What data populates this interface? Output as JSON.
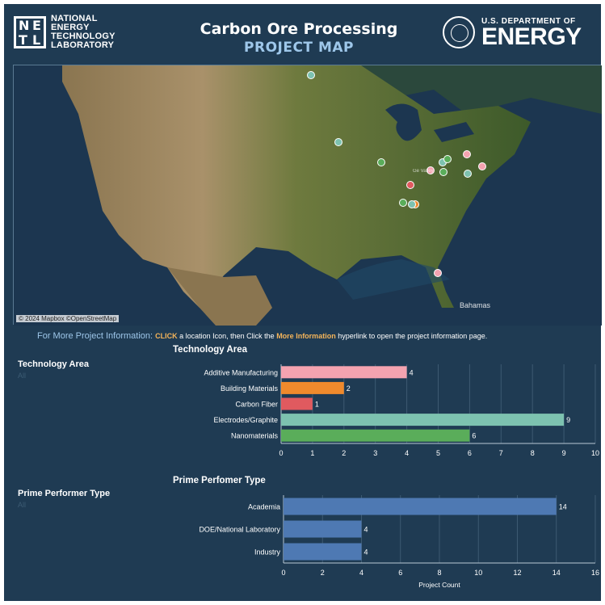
{
  "header": {
    "org_left_lines": [
      "NATIONAL",
      "ENERGY",
      "TECHNOLOGY",
      "LABORATORY"
    ],
    "org_left_mark": [
      "N",
      "E",
      "T",
      "L"
    ],
    "title_line1": "Carbon Ore Processing",
    "title_line2": "PROJECT MAP",
    "org_right_top": "U.S. DEPARTMENT OF",
    "org_right_big": "ENERGY"
  },
  "map": {
    "attribution": "© 2024 Mapbox ©OpenStreetMap",
    "label_bahamas": "Bahamas",
    "label_small_town": "Ge Valley",
    "markers": [
      {
        "category": "Electrodes/Graphite",
        "color": "#7dc2b0"
      },
      {
        "category": "Electrodes/Graphite",
        "color": "#7dc2b0"
      },
      {
        "category": "Nanomaterials",
        "color": "#5aad5a"
      },
      {
        "category": "Carbon Fiber",
        "color": "#e05a5f"
      },
      {
        "category": "Nanomaterials",
        "color": "#5aad5a"
      },
      {
        "category": "Additive Manufacturing",
        "color": "#f4a3b0"
      },
      {
        "category": "Electrodes/Graphite",
        "color": "#7dc2b0"
      },
      {
        "category": "Nanomaterials",
        "color": "#5aad5a"
      },
      {
        "category": "Additive Manufacturing",
        "color": "#f4a3b0"
      },
      {
        "category": "Additive Manufacturing",
        "color": "#f4a3b0"
      },
      {
        "category": "Electrodes/Graphite",
        "color": "#7dc2b0"
      },
      {
        "category": "Nanomaterials",
        "color": "#5aad5a"
      },
      {
        "category": "Building Materials",
        "color": "#f08a2c"
      },
      {
        "category": "Electrodes/Graphite",
        "color": "#7dc2b0"
      },
      {
        "category": "Additive Manufacturing",
        "color": "#f4a3b0"
      }
    ]
  },
  "info": {
    "lead": "For More Project Information: ",
    "click": "CLICK",
    "mid": " a location Icon, then Click the ",
    "more": "More Information",
    "tail": " hyperlink to open the project information page."
  },
  "filters": {
    "tech_label": "Technology Area",
    "tech_value": "All",
    "prime_label": "Prime Performer Type",
    "prime_value": "All"
  },
  "chart_data": [
    {
      "type": "bar",
      "orientation": "horizontal",
      "title": "Technology Area",
      "categories": [
        "Additive Manufacturing",
        "Building Materials",
        "Carbon Fiber",
        "Electrodes/Graphite",
        "Nanomaterials"
      ],
      "values": [
        4,
        2,
        1,
        9,
        6
      ],
      "colors": [
        "#f4a3b0",
        "#f08a2c",
        "#e05a5f",
        "#7dc2b0",
        "#5aad5a"
      ],
      "xlim": [
        0,
        10
      ],
      "xticks": [
        0,
        1,
        2,
        3,
        4,
        5,
        6,
        7,
        8,
        9,
        10
      ],
      "xlabel": "",
      "grid": true,
      "data_labels": true
    },
    {
      "type": "bar",
      "orientation": "horizontal",
      "title": "Prime Perfomer Type",
      "categories": [
        "Academia",
        "DOE/National Laboratory",
        "Industry"
      ],
      "values": [
        14,
        4,
        4
      ],
      "colors": [
        "#4e79b3",
        "#4e79b3",
        "#4e79b3"
      ],
      "xlim": [
        0,
        16
      ],
      "xticks": [
        0,
        2,
        4,
        6,
        8,
        10,
        12,
        14,
        16
      ],
      "xlabel": "Project Count",
      "grid": true,
      "data_labels": true
    }
  ]
}
